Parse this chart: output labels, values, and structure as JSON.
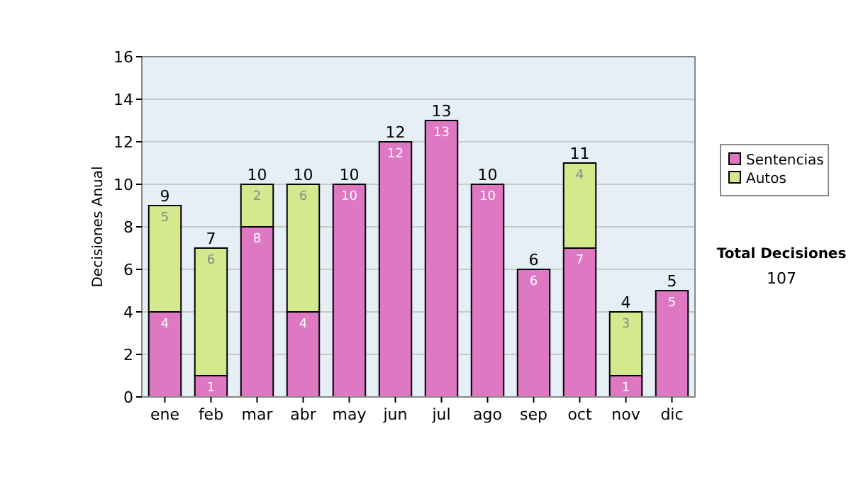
{
  "chart_data": {
    "type": "bar",
    "stacked": true,
    "ylabel": "Decisiones Anual",
    "categories": [
      "ene",
      "feb",
      "mar",
      "abr",
      "may",
      "jun",
      "jul",
      "ago",
      "sep",
      "oct",
      "nov",
      "dic"
    ],
    "series": [
      {
        "name": "Sentencias",
        "color": "#df78c3",
        "values": [
          4,
          1,
          8,
          4,
          10,
          12,
          13,
          10,
          6,
          7,
          1,
          5
        ]
      },
      {
        "name": "Autos",
        "color": "#d6e88e",
        "values": [
          5,
          6,
          2,
          6,
          null,
          null,
          null,
          null,
          null,
          4,
          3,
          null
        ]
      }
    ],
    "totals": [
      "9",
      "7",
      "10",
      "10",
      "10",
      "12",
      "13",
      "10",
      "6",
      "11",
      "4",
      "5"
    ],
    "data_labels": true,
    "ylim": [
      0,
      16
    ],
    "yticks": [
      0,
      2,
      4,
      6,
      8,
      10,
      12,
      14,
      16
    ],
    "grid": "y",
    "legend": "right",
    "annotations": [
      "Total Decisiones",
      "107"
    ]
  }
}
